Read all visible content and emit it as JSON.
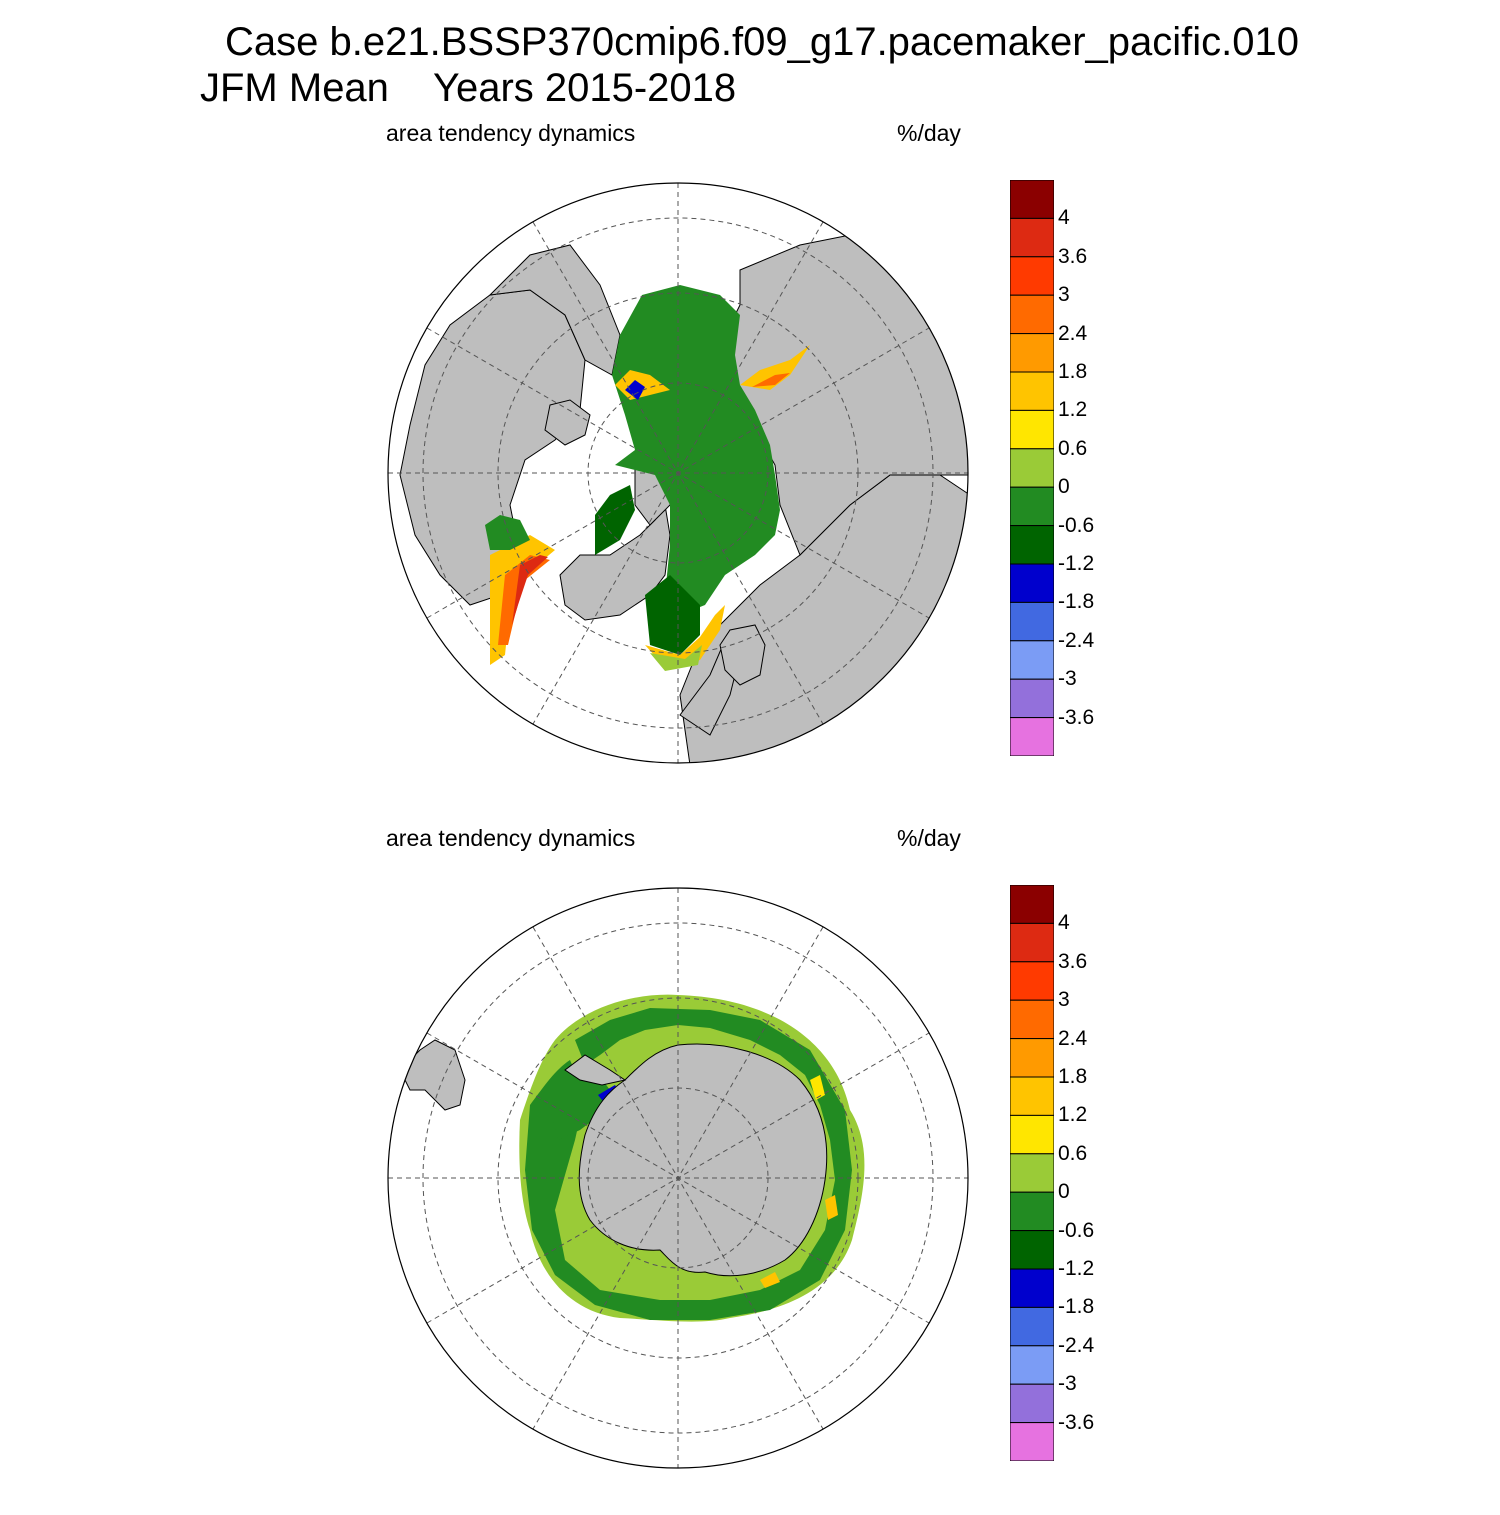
{
  "title": {
    "case_line": "Case b.e21.BSSP370cmip6.f09_g17.pacemaker_pacific.010",
    "season": "JFM Mean",
    "years": "Years 2015-2018"
  },
  "panels": [
    {
      "label_left": "area tendency dynamics",
      "label_right": "%/day",
      "hemisphere": "north"
    },
    {
      "label_left": "area tendency dynamics",
      "label_right": "%/day",
      "hemisphere": "south"
    }
  ],
  "colorbar": {
    "ticks": [
      "4",
      "3.6",
      "3",
      "2.4",
      "1.8",
      "1.2",
      "0.6",
      "0",
      "-0.6",
      "-1.2",
      "-1.8",
      "-2.4",
      "-3",
      "-3.6"
    ],
    "colors": [
      "#8b0000",
      "#dd2a12",
      "#ff3a00",
      "#ff6a00",
      "#ff9a00",
      "#ffc400",
      "#ffe600",
      "#9acb37",
      "#228b22",
      "#006400",
      "#0000cd",
      "#4169e1",
      "#7b9cf5",
      "#9370db",
      "#e672e0"
    ]
  },
  "colors": {
    "land": "#bebebe",
    "ocean": "#ffffff",
    "grid": "#555555"
  }
}
